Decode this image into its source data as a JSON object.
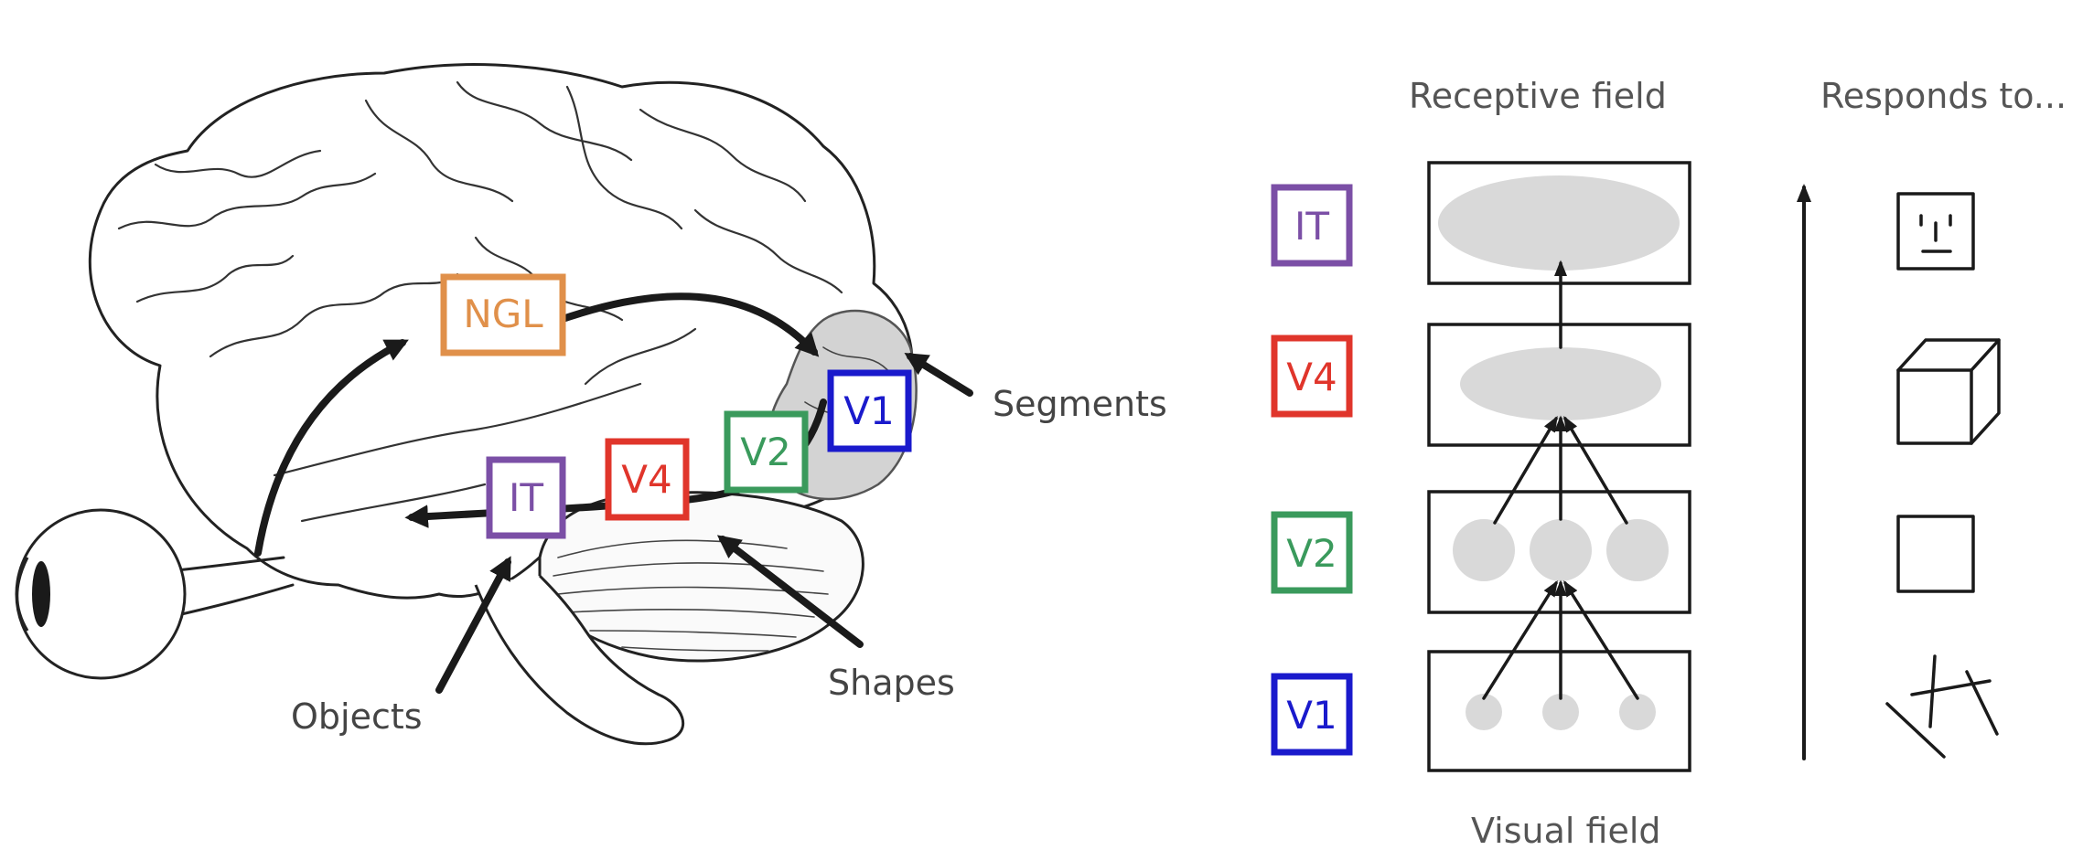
{
  "brain_labels": {
    "ngl": "NGL",
    "it": "IT",
    "v4": "V4",
    "v2": "V2",
    "v1": "V1",
    "segments": "Segments",
    "shapes": "Shapes",
    "objects": "Objects"
  },
  "hierarchy": {
    "heading_receptive": "Receptive field",
    "heading_responds": "Responds to...",
    "footer_visual": "Visual field",
    "levels": [
      "IT",
      "V4",
      "V2",
      "V1"
    ]
  },
  "colors": {
    "ngl": "#e0904a",
    "it": "#7b4fa6",
    "v4": "#e0352b",
    "v2": "#3a9a5c",
    "v1": "#1a1acc",
    "blob": "#d9d9d9"
  },
  "icons": {
    "eye": "eye-icon",
    "face": "face-icon",
    "cube": "cube-icon",
    "square": "square-icon",
    "lines": "line-segments-icon"
  }
}
